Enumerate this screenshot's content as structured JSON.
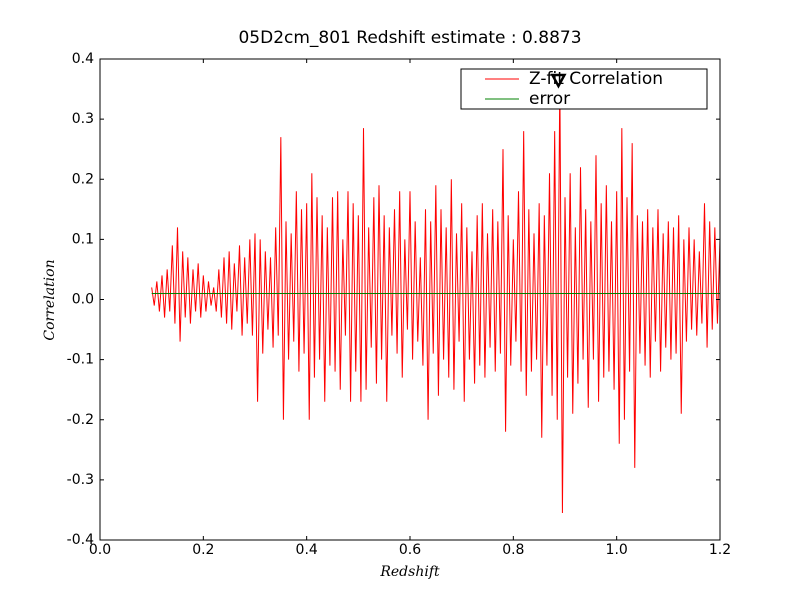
{
  "chart_data": {
    "type": "line",
    "title": "05D2cm_801 Redshift estimate : 0.8873",
    "x_label": "Redshift",
    "y_label": "Correlation",
    "xlim": [
      0,
      1.2
    ],
    "ylim": [
      -0.4,
      0.4
    ],
    "xticks": [
      {
        "value": 0,
        "label": "0.0"
      },
      0.2,
      0.4,
      0.6,
      0.8,
      {
        "value": 1,
        "label": "1.0"
      },
      1.2
    ],
    "yticks": [
      -0.4,
      -0.3,
      -0.2,
      -0.1,
      {
        "value": 0,
        "label": "0.0"
      },
      0.1,
      0.2,
      0.3,
      0.4
    ],
    "legend": "upper right",
    "series": [
      {
        "name": "Z-fit Correlation",
        "color": "#ff0000",
        "x": [
          0.1,
          0.105,
          0.11,
          0.115,
          0.12,
          0.125,
          0.13,
          0.135,
          0.14,
          0.145,
          0.15,
          0.155,
          0.16,
          0.165,
          0.17,
          0.175,
          0.18,
          0.185,
          0.19,
          0.195,
          0.2,
          0.205,
          0.21,
          0.215,
          0.22,
          0.225,
          0.23,
          0.235,
          0.24,
          0.245,
          0.25,
          0.255,
          0.26,
          0.265,
          0.27,
          0.275,
          0.28,
          0.285,
          0.29,
          0.295,
          0.3,
          0.305,
          0.31,
          0.315,
          0.32,
          0.325,
          0.33,
          0.335,
          0.34,
          0.345,
          0.35,
          0.355,
          0.36,
          0.365,
          0.37,
          0.375,
          0.38,
          0.385,
          0.39,
          0.395,
          0.4,
          0.405,
          0.41,
          0.415,
          0.42,
          0.425,
          0.43,
          0.435,
          0.44,
          0.445,
          0.45,
          0.455,
          0.46,
          0.465,
          0.47,
          0.475,
          0.48,
          0.485,
          0.49,
          0.495,
          0.5,
          0.505,
          0.51,
          0.515,
          0.52,
          0.525,
          0.53,
          0.535,
          0.54,
          0.545,
          0.55,
          0.555,
          0.56,
          0.565,
          0.57,
          0.575,
          0.58,
          0.585,
          0.59,
          0.595,
          0.6,
          0.605,
          0.61,
          0.615,
          0.62,
          0.625,
          0.63,
          0.635,
          0.64,
          0.645,
          0.65,
          0.655,
          0.66,
          0.665,
          0.67,
          0.675,
          0.68,
          0.685,
          0.69,
          0.695,
          0.7,
          0.705,
          0.71,
          0.715,
          0.72,
          0.725,
          0.73,
          0.735,
          0.74,
          0.745,
          0.75,
          0.755,
          0.76,
          0.765,
          0.77,
          0.775,
          0.78,
          0.785,
          0.79,
          0.795,
          0.8,
          0.805,
          0.81,
          0.815,
          0.82,
          0.825,
          0.83,
          0.835,
          0.84,
          0.845,
          0.85,
          0.855,
          0.86,
          0.865,
          0.87,
          0.875,
          0.88,
          0.885,
          0.89,
          0.895,
          0.9,
          0.905,
          0.91,
          0.915,
          0.92,
          0.925,
          0.93,
          0.935,
          0.94,
          0.945,
          0.95,
          0.955,
          0.96,
          0.965,
          0.97,
          0.975,
          0.98,
          0.985,
          0.99,
          0.995,
          1.0,
          1.005,
          1.01,
          1.015,
          1.02,
          1.025,
          1.03,
          1.035,
          1.04,
          1.045,
          1.05,
          1.055,
          1.06,
          1.065,
          1.07,
          1.075,
          1.08,
          1.085,
          1.09,
          1.095,
          1.1,
          1.105,
          1.11,
          1.115,
          1.12,
          1.125,
          1.13,
          1.135,
          1.14,
          1.145,
          1.15,
          1.155,
          1.16,
          1.165,
          1.17,
          1.175,
          1.18,
          1.185,
          1.19,
          1.195,
          1.2
        ],
        "values": [
          0.02,
          -0.01,
          0.03,
          -0.02,
          0.04,
          -0.03,
          0.05,
          -0.02,
          0.09,
          -0.04,
          0.12,
          -0.07,
          0.08,
          -0.03,
          0.07,
          -0.04,
          0.05,
          -0.02,
          0.06,
          -0.03,
          0.04,
          -0.02,
          0.03,
          -0.01,
          0.02,
          -0.02,
          0.05,
          -0.03,
          0.07,
          -0.04,
          0.08,
          -0.05,
          0.06,
          -0.02,
          0.09,
          -0.06,
          0.07,
          -0.04,
          0.1,
          -0.06,
          0.11,
          -0.17,
          0.1,
          -0.09,
          0.08,
          -0.05,
          0.07,
          -0.08,
          0.12,
          -0.06,
          0.27,
          -0.2,
          0.13,
          -0.1,
          0.11,
          -0.07,
          0.18,
          -0.12,
          0.15,
          -0.09,
          0.16,
          -0.2,
          0.21,
          -0.13,
          0.17,
          -0.1,
          0.14,
          -0.17,
          0.12,
          -0.11,
          0.17,
          -0.12,
          0.18,
          -0.15,
          0.1,
          -0.06,
          0.18,
          -0.17,
          0.16,
          -0.12,
          0.14,
          -0.17,
          0.285,
          -0.15,
          0.12,
          -0.08,
          0.17,
          -0.14,
          0.19,
          -0.1,
          0.14,
          -0.17,
          0.12,
          -0.06,
          0.15,
          -0.09,
          0.18,
          -0.13,
          0.1,
          -0.05,
          0.18,
          -0.1,
          0.13,
          -0.07,
          0.07,
          -0.11,
          0.15,
          -0.2,
          0.13,
          -0.09,
          0.19,
          -0.16,
          0.15,
          -0.1,
          0.12,
          -0.13,
          0.2,
          -0.15,
          0.11,
          -0.07,
          0.16,
          -0.17,
          0.12,
          -0.1,
          0.08,
          -0.14,
          0.14,
          -0.11,
          0.16,
          -0.13,
          0.11,
          -0.08,
          0.15,
          -0.12,
          0.13,
          -0.09,
          0.25,
          -0.22,
          0.14,
          -0.11,
          0.1,
          -0.07,
          0.18,
          -0.12,
          0.28,
          -0.16,
          0.15,
          -0.12,
          0.11,
          -0.1,
          0.16,
          -0.23,
          0.14,
          -0.11,
          0.21,
          -0.16,
          0.28,
          -0.2,
          0.37,
          -0.355,
          0.17,
          -0.13,
          0.21,
          -0.19,
          0.12,
          -0.14,
          0.22,
          -0.1,
          0.15,
          -0.18,
          0.13,
          -0.1,
          0.24,
          -0.17,
          0.16,
          -0.13,
          0.19,
          -0.12,
          0.13,
          -0.15,
          0.18,
          -0.24,
          0.285,
          -0.2,
          0.17,
          -0.12,
          0.26,
          -0.28,
          0.14,
          -0.09,
          0.13,
          -0.11,
          0.15,
          -0.13,
          0.12,
          -0.07,
          0.15,
          -0.12,
          0.11,
          -0.08,
          0.13,
          -0.1,
          0.12,
          -0.09,
          0.14,
          -0.19,
          0.1,
          -0.07,
          0.12,
          -0.05,
          0.1,
          -0.06,
          0.08,
          -0.04,
          0.16,
          -0.08,
          0.13,
          -0.05,
          0.12,
          -0.04,
          0.1
        ]
      },
      {
        "name": "error",
        "color": "#008000",
        "x": [
          0.1,
          1.2
        ],
        "values": [
          0.01,
          0.01
        ]
      }
    ],
    "marker": {
      "x": 0.8873,
      "y": 0.365
    }
  }
}
